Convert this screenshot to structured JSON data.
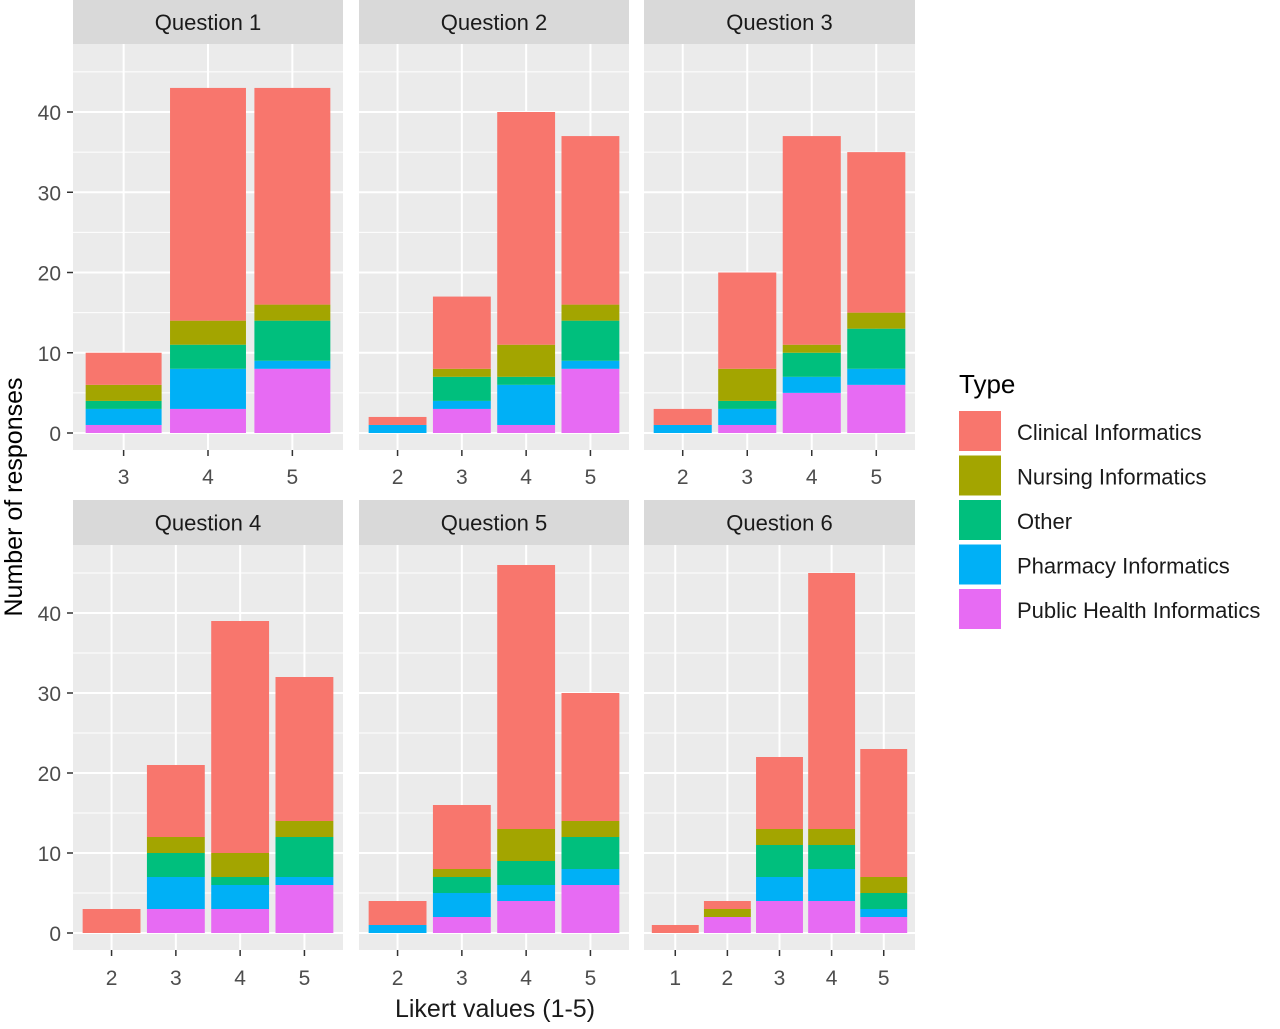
{
  "chart_data": {
    "type": "bar",
    "stacked": true,
    "xlabel": "Likert values (1-5)",
    "ylabel": "Number of responses",
    "ylim": [
      0,
      48
    ],
    "yticks": [
      0,
      10,
      20,
      30,
      40
    ],
    "grid": true,
    "legend": {
      "title": "Type",
      "placement": "right",
      "entries": [
        {
          "name": "Clinical Informatics",
          "color": "#F8766D"
        },
        {
          "name": "Nursing Informatics",
          "color": "#A3A500"
        },
        {
          "name": "Other",
          "color": "#00BF7D"
        },
        {
          "name": "Pharmacy Informatics",
          "color": "#00B0F6"
        },
        {
          "name": "Public Health Informatics",
          "color": "#E76BF3"
        }
      ]
    },
    "stack_order_bottom_to_top": [
      "Public Health Informatics",
      "Pharmacy Informatics",
      "Other",
      "Nursing Informatics",
      "Clinical Informatics"
    ],
    "panels": [
      {
        "title": "Question 1",
        "categories": [
          "3",
          "4",
          "5"
        ],
        "series": [
          {
            "name": "Public Health Informatics",
            "values": [
              1,
              3,
              8
            ]
          },
          {
            "name": "Pharmacy Informatics",
            "values": [
              2,
              5,
              1
            ]
          },
          {
            "name": "Other",
            "values": [
              1,
              3,
              5
            ]
          },
          {
            "name": "Nursing Informatics",
            "values": [
              2,
              3,
              2
            ]
          },
          {
            "name": "Clinical Informatics",
            "values": [
              4,
              29,
              27
            ]
          }
        ]
      },
      {
        "title": "Question 2",
        "categories": [
          "2",
          "3",
          "4",
          "5"
        ],
        "series": [
          {
            "name": "Public Health Informatics",
            "values": [
              0,
              3,
              1,
              8
            ]
          },
          {
            "name": "Pharmacy Informatics",
            "values": [
              1,
              1,
              5,
              1
            ]
          },
          {
            "name": "Other",
            "values": [
              0,
              3,
              1,
              5
            ]
          },
          {
            "name": "Nursing Informatics",
            "values": [
              0,
              1,
              4,
              2
            ]
          },
          {
            "name": "Clinical Informatics",
            "values": [
              1,
              9,
              29,
              21
            ]
          }
        ]
      },
      {
        "title": "Question 3",
        "categories": [
          "2",
          "3",
          "4",
          "5"
        ],
        "series": [
          {
            "name": "Public Health Informatics",
            "values": [
              0,
              1,
              5,
              6
            ]
          },
          {
            "name": "Pharmacy Informatics",
            "values": [
              1,
              2,
              2,
              2
            ]
          },
          {
            "name": "Other",
            "values": [
              0,
              1,
              3,
              5
            ]
          },
          {
            "name": "Nursing Informatics",
            "values": [
              0,
              4,
              1,
              2
            ]
          },
          {
            "name": "Clinical Informatics",
            "values": [
              2,
              12,
              26,
              20
            ]
          }
        ]
      },
      {
        "title": "Question 4",
        "categories": [
          "2",
          "3",
          "4",
          "5"
        ],
        "series": [
          {
            "name": "Public Health Informatics",
            "values": [
              0,
              3,
              3,
              6
            ]
          },
          {
            "name": "Pharmacy Informatics",
            "values": [
              0,
              4,
              3,
              1
            ]
          },
          {
            "name": "Other",
            "values": [
              0,
              3,
              1,
              5
            ]
          },
          {
            "name": "Nursing Informatics",
            "values": [
              0,
              2,
              3,
              2
            ]
          },
          {
            "name": "Clinical Informatics",
            "values": [
              3,
              9,
              29,
              18
            ]
          }
        ]
      },
      {
        "title": "Question 5",
        "categories": [
          "2",
          "3",
          "4",
          "5"
        ],
        "series": [
          {
            "name": "Public Health Informatics",
            "values": [
              0,
              2,
              4,
              6
            ]
          },
          {
            "name": "Pharmacy Informatics",
            "values": [
              1,
              3,
              2,
              2
            ]
          },
          {
            "name": "Other",
            "values": [
              0,
              2,
              3,
              4
            ]
          },
          {
            "name": "Nursing Informatics",
            "values": [
              0,
              1,
              4,
              2
            ]
          },
          {
            "name": "Clinical Informatics",
            "values": [
              3,
              8,
              33,
              16
            ]
          }
        ]
      },
      {
        "title": "Question 6",
        "categories": [
          "1",
          "2",
          "3",
          "4",
          "5"
        ],
        "series": [
          {
            "name": "Public Health Informatics",
            "values": [
              0,
              2,
              4,
              4,
              2
            ]
          },
          {
            "name": "Pharmacy Informatics",
            "values": [
              0,
              0,
              3,
              4,
              1
            ]
          },
          {
            "name": "Other",
            "values": [
              0,
              0,
              4,
              3,
              2
            ]
          },
          {
            "name": "Nursing Informatics",
            "values": [
              0,
              1,
              2,
              2,
              2
            ]
          },
          {
            "name": "Clinical Informatics",
            "values": [
              1,
              1,
              9,
              32,
              16
            ]
          }
        ]
      }
    ]
  }
}
